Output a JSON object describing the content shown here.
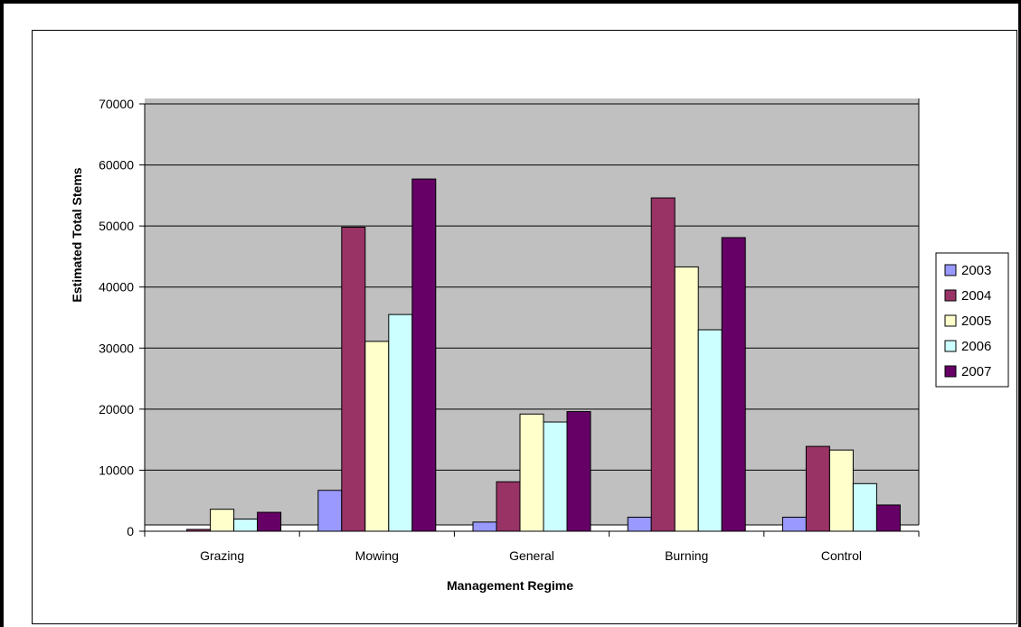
{
  "chart_data": {
    "type": "bar",
    "title": "",
    "xlabel": "Management Regime",
    "ylabel": "Estimated Total Stems",
    "ylim": [
      0,
      70000
    ],
    "yticks": [
      0,
      10000,
      20000,
      30000,
      40000,
      50000,
      60000,
      70000
    ],
    "grid": true,
    "legend_position": "right",
    "categories": [
      "Grazing",
      "Mowing",
      "General",
      "Burning",
      "Control"
    ],
    "series": [
      {
        "name": "2003",
        "color": "#9999ff",
        "values": [
          0,
          6700,
          1500,
          2300,
          2300
        ]
      },
      {
        "name": "2004",
        "color": "#993366",
        "values": [
          300,
          49800,
          8100,
          54600,
          13900
        ]
      },
      {
        "name": "2005",
        "color": "#ffffcc",
        "values": [
          3600,
          31100,
          19200,
          43300,
          13300
        ]
      },
      {
        "name": "2006",
        "color": "#ccffff",
        "values": [
          2000,
          35500,
          17900,
          33000,
          7800
        ]
      },
      {
        "name": "2007",
        "color": "#660066",
        "values": [
          3100,
          57700,
          19600,
          48100,
          4300
        ]
      }
    ],
    "plot_background": "#c0c0c0"
  }
}
